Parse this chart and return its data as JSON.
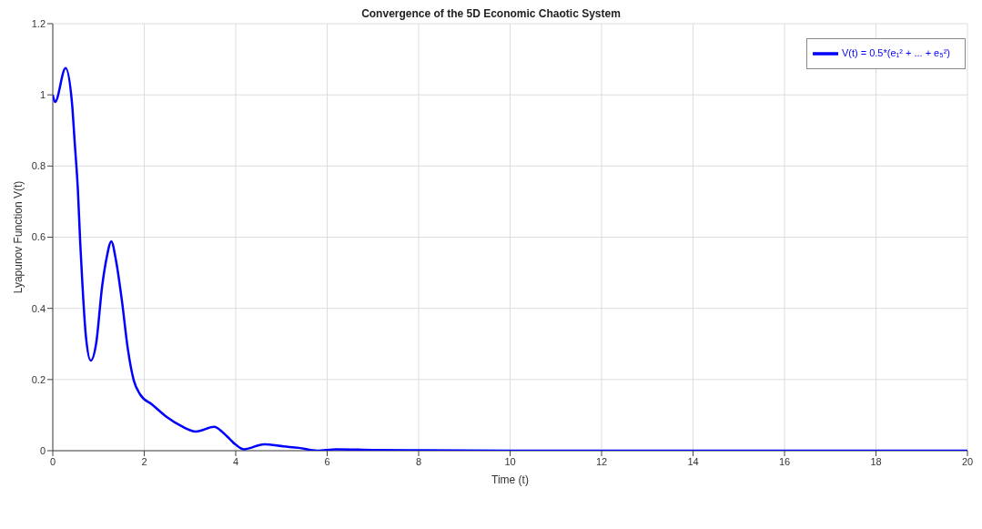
{
  "chart_data": {
    "type": "line",
    "title": "Convergence of the 5D Economic Chaotic System",
    "xlabel": "Time (t)",
    "ylabel": "Lyapunov Function V(t)",
    "x": [
      0,
      0.05,
      0.28,
      0.42,
      0.48,
      0.55,
      0.6,
      0.65,
      0.72,
      0.83,
      0.95,
      1.08,
      1.18,
      1.28,
      1.38,
      1.51,
      1.64,
      1.77,
      1.91,
      2.17,
      2.5,
      2.8,
      3.13,
      3.53,
      3.73,
      3.99,
      4.18,
      4.62,
      5.05,
      5.38,
      5.78,
      6.2,
      7,
      8,
      10,
      12,
      14,
      16,
      18,
      20
    ],
    "series": [
      {
        "name": "V(t) = 0.5*(e₁² + ... + e₅²)",
        "color": "#0000ff",
        "values": [
          1.0,
          0.98,
          1.075,
          0.977,
          0.865,
          0.73,
          0.584,
          0.463,
          0.327,
          0.253,
          0.303,
          0.463,
          0.544,
          0.588,
          0.536,
          0.423,
          0.287,
          0.198,
          0.158,
          0.13,
          0.094,
          0.07,
          0.054,
          0.067,
          0.05,
          0.018,
          0.004,
          0.018,
          0.012,
          0.008,
          0,
          0.004,
          0.002,
          0.001,
          0,
          0,
          0,
          0,
          0,
          0
        ]
      }
    ],
    "xlim": [
      0,
      20
    ],
    "xticks": [
      0,
      2,
      4,
      6,
      8,
      10,
      12,
      14,
      16,
      18,
      20
    ],
    "ylim": [
      0,
      1.2
    ],
    "yticks": [
      0,
      0.2,
      0.4,
      0.6,
      0.8,
      1,
      1.2
    ],
    "grid": true,
    "legend": "top right",
    "marker": "none",
    "line_style": "solid"
  }
}
